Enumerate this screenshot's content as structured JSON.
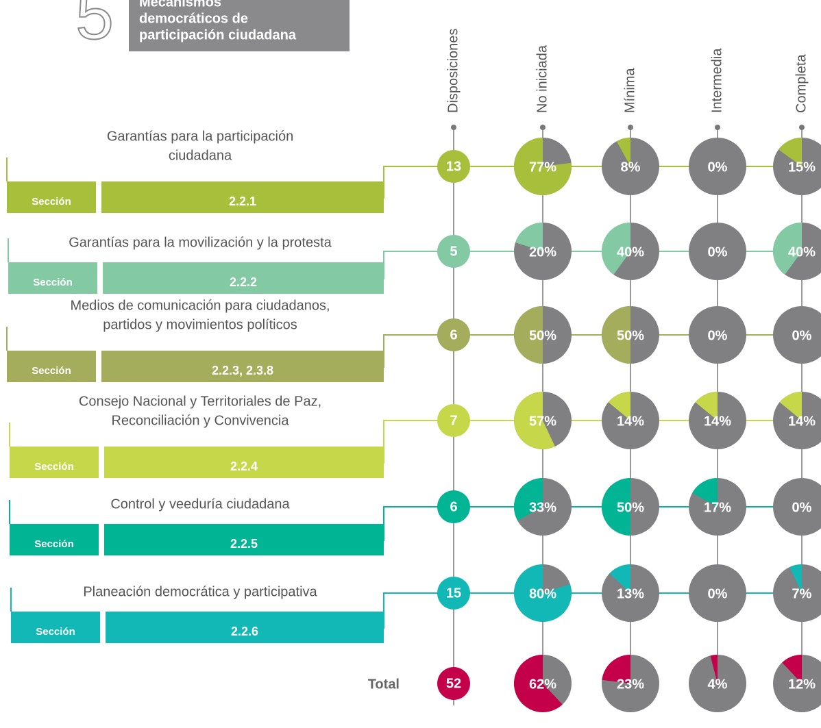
{
  "chart_data": {
    "type": "pie",
    "number": "5",
    "title": [
      "Mecanismos",
      "democráticos de",
      "participación ciudadana"
    ],
    "columns": [
      "Disposiciones",
      "No iniciada",
      "Mínima",
      "Intermedia",
      "Completa"
    ],
    "section_label": "Sección",
    "rows": [
      {
        "name": [
          "Garantías para la participación",
          "ciudadana"
        ],
        "section": "2.2.1",
        "color": "#a8bf3c",
        "count": 13,
        "values": [
          77,
          8,
          0,
          15
        ],
        "value_labels": [
          "77%",
          "8%",
          "0%",
          "15%"
        ]
      },
      {
        "name": [
          "Garantías para la movilización y la protesta"
        ],
        "section": "2.2.2",
        "color": "#82c9a4",
        "count": 5,
        "values": [
          20,
          40,
          0,
          40
        ],
        "value_labels": [
          "20%",
          "40%",
          "0%",
          "40%"
        ]
      },
      {
        "name": [
          "Medios de comunicación para ciudadanos,",
          "partidos y movimientos políticos"
        ],
        "section": "2.2.3, 2.3.8",
        "color": "#a3ad5c",
        "count": 6,
        "values": [
          50,
          50,
          0,
          0
        ],
        "value_labels": [
          "50%",
          "50%",
          "0%",
          "0%"
        ]
      },
      {
        "name": [
          "Consejo Nacional y Territoriales de Paz,",
          "Reconciliación y Convivencia"
        ],
        "section": "2.2.4",
        "color": "#c6d84a",
        "count": 7,
        "values": [
          57,
          14,
          14,
          14
        ],
        "value_labels": [
          "57%",
          "14%",
          "14%",
          "14%"
        ]
      },
      {
        "name": [
          "Control y veeduría ciudadana"
        ],
        "section": "2.2.5",
        "color": "#00b494",
        "count": 6,
        "values": [
          33,
          50,
          17,
          0
        ],
        "value_labels": [
          "33%",
          "50%",
          "17%",
          "0%"
        ]
      },
      {
        "name": [
          "Planeación democrática y participativa"
        ],
        "section": "2.2.6",
        "color": "#12b8b6",
        "count": 15,
        "values": [
          80,
          13,
          0,
          7
        ],
        "value_labels": [
          "80%",
          "13%",
          "0%",
          "7%"
        ]
      }
    ],
    "total": {
      "name": "Total",
      "color": "#c4004a",
      "count": 52,
      "values": [
        62,
        23,
        4,
        12
      ],
      "value_labels": [
        "62%",
        "23%",
        "4%",
        "12%"
      ]
    }
  }
}
